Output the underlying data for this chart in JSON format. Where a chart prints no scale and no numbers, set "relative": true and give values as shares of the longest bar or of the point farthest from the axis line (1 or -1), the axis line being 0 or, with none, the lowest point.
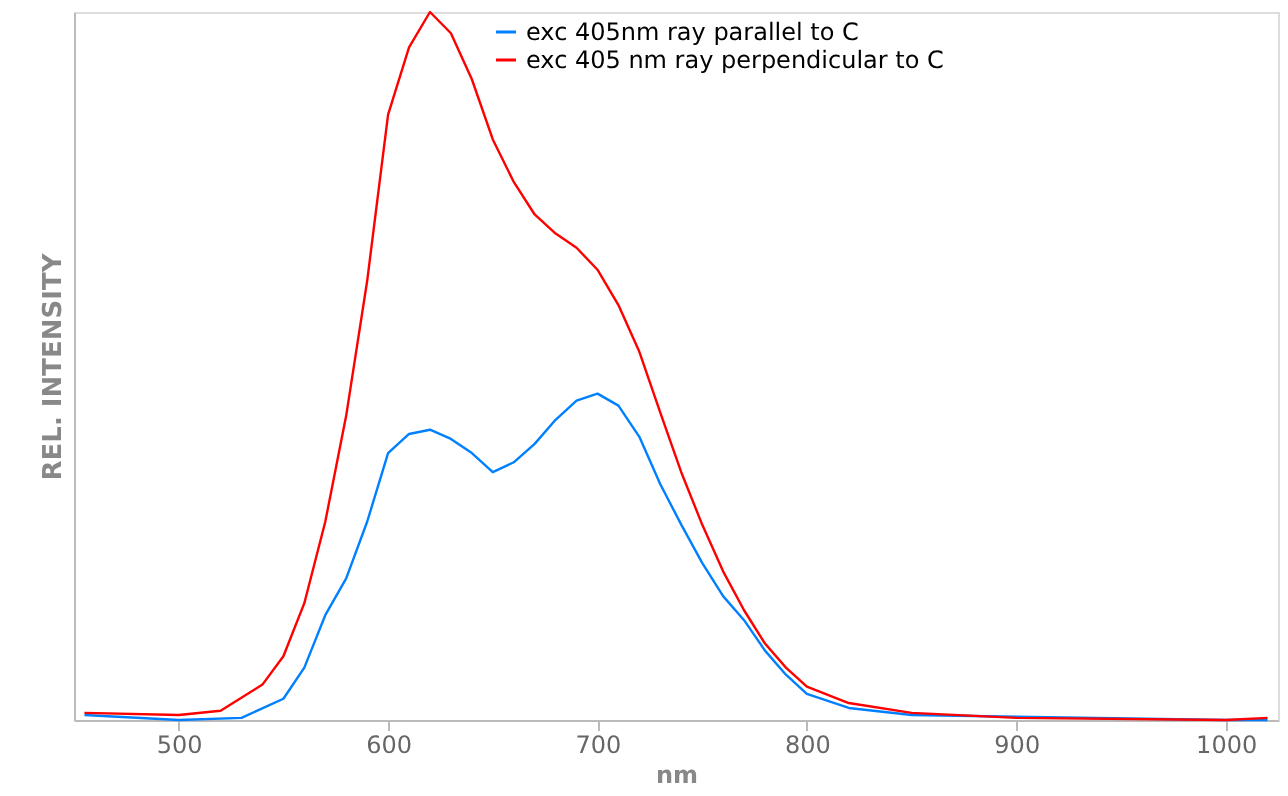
{
  "chart_data": {
    "type": "line",
    "xlabel": "nm",
    "ylabel": "REL.  INTENSITY",
    "relative": true,
    "xlim": [
      450,
      1025
    ],
    "xticks": [
      500,
      600,
      700,
      800,
      900,
      1000
    ],
    "legend": "top",
    "grid": false,
    "series": [
      {
        "name": "exc 405nm ray  parallel to C",
        "color": "#0080ff",
        "x": [
          455,
          500,
          530,
          550,
          560,
          570,
          580,
          590,
          600,
          610,
          620,
          630,
          640,
          650,
          660,
          670,
          680,
          690,
          700,
          710,
          720,
          730,
          740,
          750,
          760,
          770,
          780,
          790,
          800,
          820,
          850,
          1000,
          1020
        ],
        "values": [
          0.007,
          0.0,
          0.003,
          0.03,
          0.074,
          0.148,
          0.2,
          0.28,
          0.377,
          0.404,
          0.41,
          0.397,
          0.377,
          0.35,
          0.364,
          0.39,
          0.424,
          0.451,
          0.461,
          0.444,
          0.4,
          0.333,
          0.276,
          0.222,
          0.175,
          0.141,
          0.098,
          0.064,
          0.037,
          0.017,
          0.007,
          0.0,
          0.0
        ]
      },
      {
        "name": "exc 405 nm ray perpendicular to C",
        "color": "#ff0000",
        "x": [
          455,
          500,
          520,
          540,
          550,
          560,
          570,
          580,
          590,
          600,
          610,
          620,
          630,
          640,
          650,
          660,
          670,
          680,
          690,
          700,
          710,
          720,
          730,
          740,
          750,
          760,
          770,
          780,
          790,
          800,
          820,
          850,
          900,
          1000,
          1020
        ],
        "values": [
          0.01,
          0.007,
          0.013,
          0.05,
          0.09,
          0.165,
          0.28,
          0.43,
          0.62,
          0.855,
          0.95,
          1.0,
          0.97,
          0.905,
          0.82,
          0.76,
          0.714,
          0.687,
          0.667,
          0.636,
          0.586,
          0.52,
          0.434,
          0.35,
          0.276,
          0.21,
          0.155,
          0.108,
          0.074,
          0.047,
          0.024,
          0.01,
          0.003,
          0.0,
          0.003
        ]
      }
    ]
  }
}
